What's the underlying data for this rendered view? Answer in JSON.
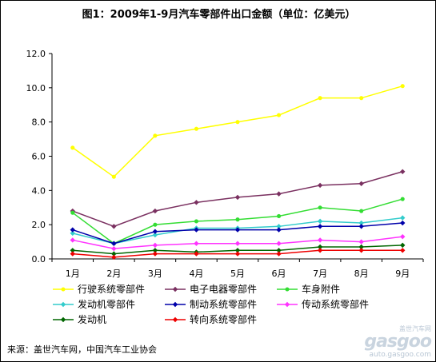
{
  "chart_data": {
    "type": "line",
    "title": "图1：2009年1-9月汽车零部件出口金额（单位：亿美元）",
    "categories": [
      "1月",
      "2月",
      "3月",
      "4月",
      "5月",
      "6月",
      "7月",
      "8月",
      "9月"
    ],
    "ylim": [
      0,
      12
    ],
    "yticks": [
      "0.0",
      "2.0",
      "4.0",
      "6.0",
      "8.0",
      "10.0",
      "12.0"
    ],
    "grid": false,
    "legend_position": "bottom",
    "series": [
      {
        "name": "行驶系统零部件",
        "color": "#ffff00",
        "marker": "circle",
        "values": [
          6.5,
          4.8,
          7.2,
          7.6,
          8.0,
          8.4,
          9.4,
          9.4,
          10.1
        ]
      },
      {
        "name": "电子电器零部件",
        "color": "#7a3060",
        "marker": "diamond",
        "values": [
          2.8,
          1.9,
          2.8,
          3.3,
          3.6,
          3.8,
          4.3,
          4.4,
          5.1
        ]
      },
      {
        "name": "车身附件",
        "color": "#33dd33",
        "marker": "circle",
        "values": [
          2.7,
          0.9,
          2.0,
          2.2,
          2.3,
          2.5,
          3.0,
          2.8,
          3.5
        ]
      },
      {
        "name": "发动机零部件",
        "color": "#33cccc",
        "marker": "diamond",
        "values": [
          1.5,
          0.9,
          1.4,
          1.8,
          1.8,
          1.9,
          2.2,
          2.1,
          2.4
        ]
      },
      {
        "name": "制动系统零部件",
        "color": "#0000aa",
        "marker": "diamond",
        "values": [
          1.7,
          0.9,
          1.6,
          1.7,
          1.7,
          1.7,
          1.9,
          1.9,
          2.1
        ]
      },
      {
        "name": "传动系统零部件",
        "color": "#ff33ff",
        "marker": "diamond",
        "values": [
          1.1,
          0.6,
          0.8,
          0.9,
          0.9,
          0.9,
          1.1,
          1.0,
          1.3
        ]
      },
      {
        "name": "发动机",
        "color": "#006600",
        "marker": "diamond",
        "values": [
          0.5,
          0.3,
          0.5,
          0.4,
          0.5,
          0.5,
          0.7,
          0.7,
          0.8
        ]
      },
      {
        "name": "转向系统零部件",
        "color": "#ee0000",
        "marker": "diamond",
        "values": [
          0.3,
          0.1,
          0.3,
          0.3,
          0.3,
          0.3,
          0.5,
          0.5,
          0.5
        ]
      }
    ]
  },
  "source": "来源：盖世汽车网，中国汽车工业协会",
  "watermark": {
    "site": "盖世汽车网",
    "logo": "gasgoo",
    "url": "auto.gasgoo.com"
  }
}
